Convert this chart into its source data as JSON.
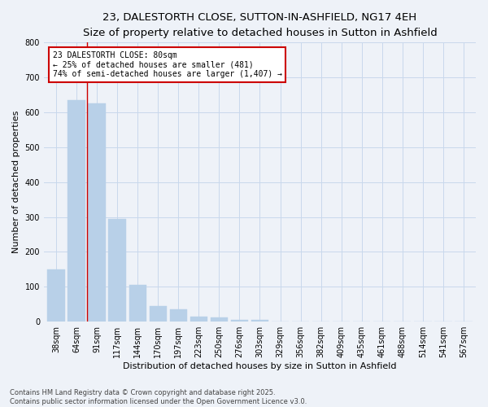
{
  "title_line1": "23, DALESTORTH CLOSE, SUTTON-IN-ASHFIELD, NG17 4EH",
  "title_line2": "Size of property relative to detached houses in Sutton in Ashfield",
  "xlabel": "Distribution of detached houses by size in Sutton in Ashfield",
  "ylabel": "Number of detached properties",
  "categories": [
    "38sqm",
    "64sqm",
    "91sqm",
    "117sqm",
    "144sqm",
    "170sqm",
    "197sqm",
    "223sqm",
    "250sqm",
    "276sqm",
    "303sqm",
    "329sqm",
    "356sqm",
    "382sqm",
    "409sqm",
    "435sqm",
    "461sqm",
    "488sqm",
    "514sqm",
    "541sqm",
    "567sqm"
  ],
  "values": [
    150,
    635,
    625,
    295,
    105,
    45,
    35,
    15,
    12,
    5,
    4,
    0,
    0,
    0,
    1,
    0,
    0,
    0,
    0,
    0,
    1
  ],
  "bar_color": "#b8d0e8",
  "bar_edge_color": "#b8d0e8",
  "vline_x": 1.5,
  "vline_color": "#cc0000",
  "annotation_text": "23 DALESTORTH CLOSE: 80sqm\n← 25% of detached houses are smaller (481)\n74% of semi-detached houses are larger (1,407) →",
  "annotation_box_color": "#ffffff",
  "annotation_box_edge": "#cc0000",
  "ylim": [
    0,
    800
  ],
  "yticks": [
    0,
    100,
    200,
    300,
    400,
    500,
    600,
    700,
    800
  ],
  "grid_color": "#c8d8ec",
  "footer_line1": "Contains HM Land Registry data © Crown copyright and database right 2025.",
  "footer_line2": "Contains public sector information licensed under the Open Government Licence v3.0.",
  "background_color": "#eef2f8",
  "plot_background": "#eef2f8",
  "title_fontsize": 9.5,
  "subtitle_fontsize": 8.5,
  "axis_label_fontsize": 8,
  "tick_fontsize": 7,
  "annotation_fontsize": 7,
  "footer_fontsize": 6,
  "ylabel_fontsize": 8
}
